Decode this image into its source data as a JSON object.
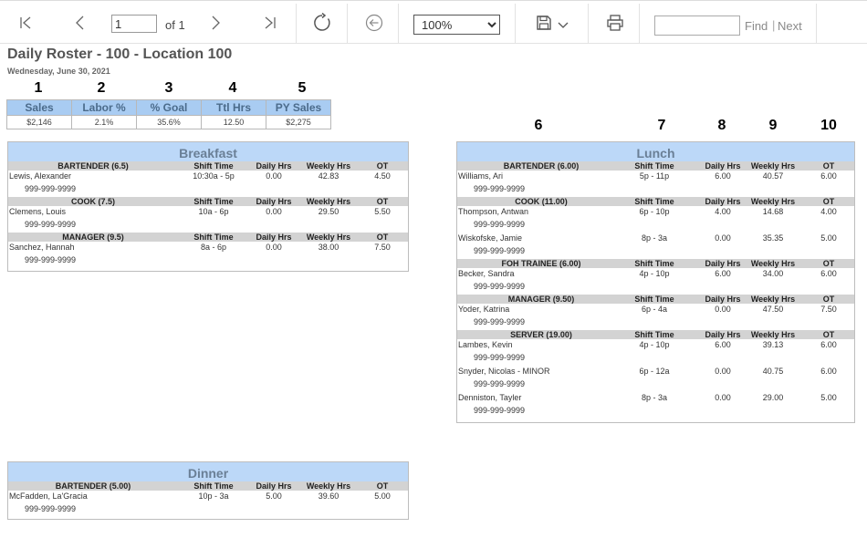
{
  "toolbar": {
    "page_value": "1",
    "of_label": "of 1",
    "zoom_value": "100%",
    "zoom_options": [
      "100%"
    ],
    "find_label": "Find",
    "find_sep": "|",
    "next_label": "Next"
  },
  "report": {
    "title": "Daily Roster - 100 - Location 100",
    "date": "Wednesday, June 30, 2021"
  },
  "column_numbers": [
    "1",
    "2",
    "3",
    "4",
    "5",
    "6",
    "7",
    "8",
    "9",
    "10"
  ],
  "summary": {
    "headers": [
      "Sales",
      "Labor %",
      "% Goal",
      "Ttl Hrs",
      "PY Sales"
    ],
    "values": [
      "$2,146",
      "2.1%",
      "35.6%",
      "12.50",
      "$2,275"
    ]
  },
  "col_headers": {
    "shift": "Shift Time",
    "daily": "Daily Hrs",
    "weekly": "Weekly Hrs",
    "ot": "OT"
  },
  "breakfast": {
    "title": "Breakfast",
    "groups": [
      {
        "role": "BARTENDER (6.5)",
        "employees": [
          {
            "name": "Lewis, Alexander",
            "phone": "999-999-9999",
            "shift": "10:30a - 5p",
            "daily": "0.00",
            "weekly": "42.83",
            "ot": "4.50"
          }
        ]
      },
      {
        "role": "COOK (7.5)",
        "employees": [
          {
            "name": "Clemens, Louis",
            "phone": "999-999-9999",
            "shift": "10a - 6p",
            "daily": "0.00",
            "weekly": "29.50",
            "ot": "5.50"
          }
        ]
      },
      {
        "role": "MANAGER (9.5)",
        "employees": [
          {
            "name": "Sanchez, Hannah",
            "phone": "999-999-9999",
            "shift": "8a - 6p",
            "daily": "0.00",
            "weekly": "38.00",
            "ot": "7.50"
          }
        ]
      }
    ]
  },
  "lunch": {
    "title": "Lunch",
    "groups": [
      {
        "role": "BARTENDER (6.00)",
        "employees": [
          {
            "name": "Williams, Ari",
            "phone": "999-999-9999",
            "shift": "5p - 11p",
            "daily": "6.00",
            "weekly": "40.57",
            "ot": "6.00"
          }
        ]
      },
      {
        "role": "COOK (11.00)",
        "employees": [
          {
            "name": "Thompson, Antwan",
            "phone": "999-999-9999",
            "shift": "6p - 10p",
            "daily": "4.00",
            "weekly": "14.68",
            "ot": "4.00"
          },
          {
            "name": "Wiskofske, Jamie",
            "phone": "999-999-9999",
            "shift": "8p - 3a",
            "daily": "0.00",
            "weekly": "35.35",
            "ot": "5.00"
          }
        ]
      },
      {
        "role": "FOH TRAINEE (6.00)",
        "employees": [
          {
            "name": "Becker, Sandra",
            "phone": "999-999-9999",
            "shift": "4p - 10p",
            "daily": "6.00",
            "weekly": "34.00",
            "ot": "6.00"
          }
        ]
      },
      {
        "role": "MANAGER (9.50)",
        "employees": [
          {
            "name": "Yoder, Katrina",
            "phone": "999-999-9999",
            "shift": "6p - 4a",
            "daily": "0.00",
            "weekly": "47.50",
            "ot": "7.50"
          }
        ]
      },
      {
        "role": "SERVER (19.00)",
        "employees": [
          {
            "name": "Lambes, Kevin",
            "phone": "999-999-9999",
            "shift": "4p - 10p",
            "daily": "6.00",
            "weekly": "39.13",
            "ot": "6.00"
          },
          {
            "name": "Snyder, Nicolas - MINOR",
            "phone": "999-999-9999",
            "shift": "6p - 12a",
            "daily": "0.00",
            "weekly": "40.75",
            "ot": "6.00"
          },
          {
            "name": "Denniston, Tayler",
            "phone": "999-999-9999",
            "shift": "8p - 3a",
            "daily": "0.00",
            "weekly": "29.00",
            "ot": "5.00"
          }
        ]
      }
    ]
  },
  "dinner": {
    "title": "Dinner",
    "groups": [
      {
        "role": "BARTENDER (5.00)",
        "employees": [
          {
            "name": "McFadden, La'Gracia",
            "phone": "999-999-9999",
            "shift": "10p - 3a",
            "daily": "5.00",
            "weekly": "39.60",
            "ot": "5.00"
          }
        ]
      }
    ]
  }
}
